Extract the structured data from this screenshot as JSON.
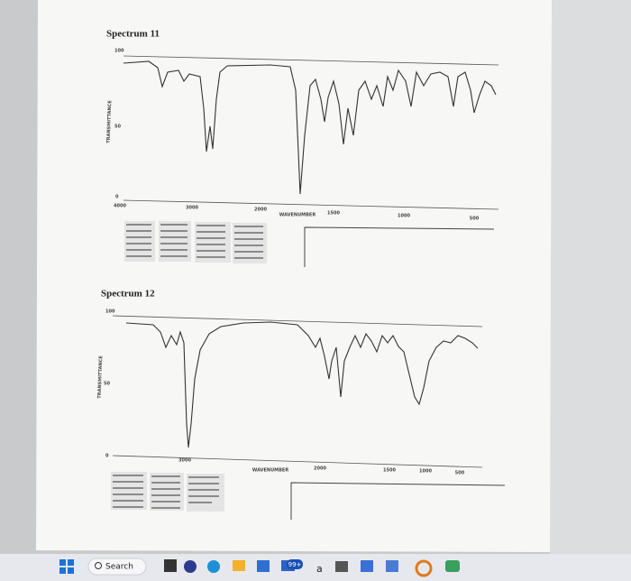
{
  "spectra": [
    {
      "title": "Spectrum 11",
      "y_labels": [
        "100",
        "50",
        "0"
      ],
      "y_axis_label": "TRANSMITTANCE",
      "x_labels": [
        "4000",
        "3000",
        "2000",
        "1500",
        "1000",
        "500"
      ],
      "x_axis_label": "WAVENUMBER"
    },
    {
      "title": "Spectrum 12",
      "y_labels": [
        "100",
        "50",
        "0"
      ],
      "y_axis_label": "TRANSMITTANCE",
      "x_labels": [
        "3000",
        "2000",
        "1500",
        "1000",
        "500"
      ],
      "x_axis_label": "WAVENUMBER"
    }
  ],
  "taskbar": {
    "search": "Search",
    "badge": "99+",
    "letter": "a"
  }
}
